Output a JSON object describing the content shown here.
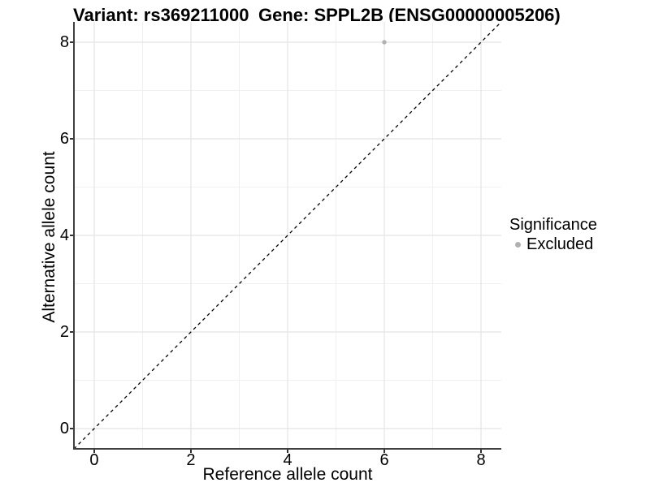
{
  "titles": {
    "variant": "Variant: rs369211000",
    "gene": "Gene: SPPL2B (ENSG00000005206)"
  },
  "legend": {
    "title": "Significance",
    "items": [
      {
        "label": "Excluded",
        "color": "#b0b0b0"
      }
    ]
  },
  "chart_data": {
    "type": "scatter",
    "title_left": "Variant: rs369211000",
    "title_right": "Gene: SPPL2B (ENSG00000005206)",
    "xlabel": "Reference allele count",
    "ylabel": "Alternative allele count",
    "xlim": [
      -0.42,
      8.42
    ],
    "ylim": [
      -0.42,
      8.42
    ],
    "x_ticks": [
      0,
      2,
      4,
      6,
      8
    ],
    "y_ticks": [
      0,
      2,
      4,
      6,
      8
    ],
    "x_minor_ticks": [
      1,
      3,
      5,
      7
    ],
    "y_minor_ticks": [
      1,
      3,
      5,
      7
    ],
    "grid": true,
    "legend_position": "right",
    "series": [
      {
        "name": "Excluded",
        "color": "#b0b0b0",
        "points": [
          {
            "x": 6,
            "y": 8
          }
        ]
      }
    ],
    "reference_line": {
      "type": "identity",
      "equation": "y = x",
      "style": "dashed",
      "color": "#000000"
    }
  },
  "colors": {
    "background": "#ffffff",
    "grid_major": "#e4e4e4",
    "grid_minor": "#f0f0f0",
    "axis_line": "#404040",
    "tick": "#333333",
    "point": "#b0b0b0",
    "text": "#000000"
  }
}
